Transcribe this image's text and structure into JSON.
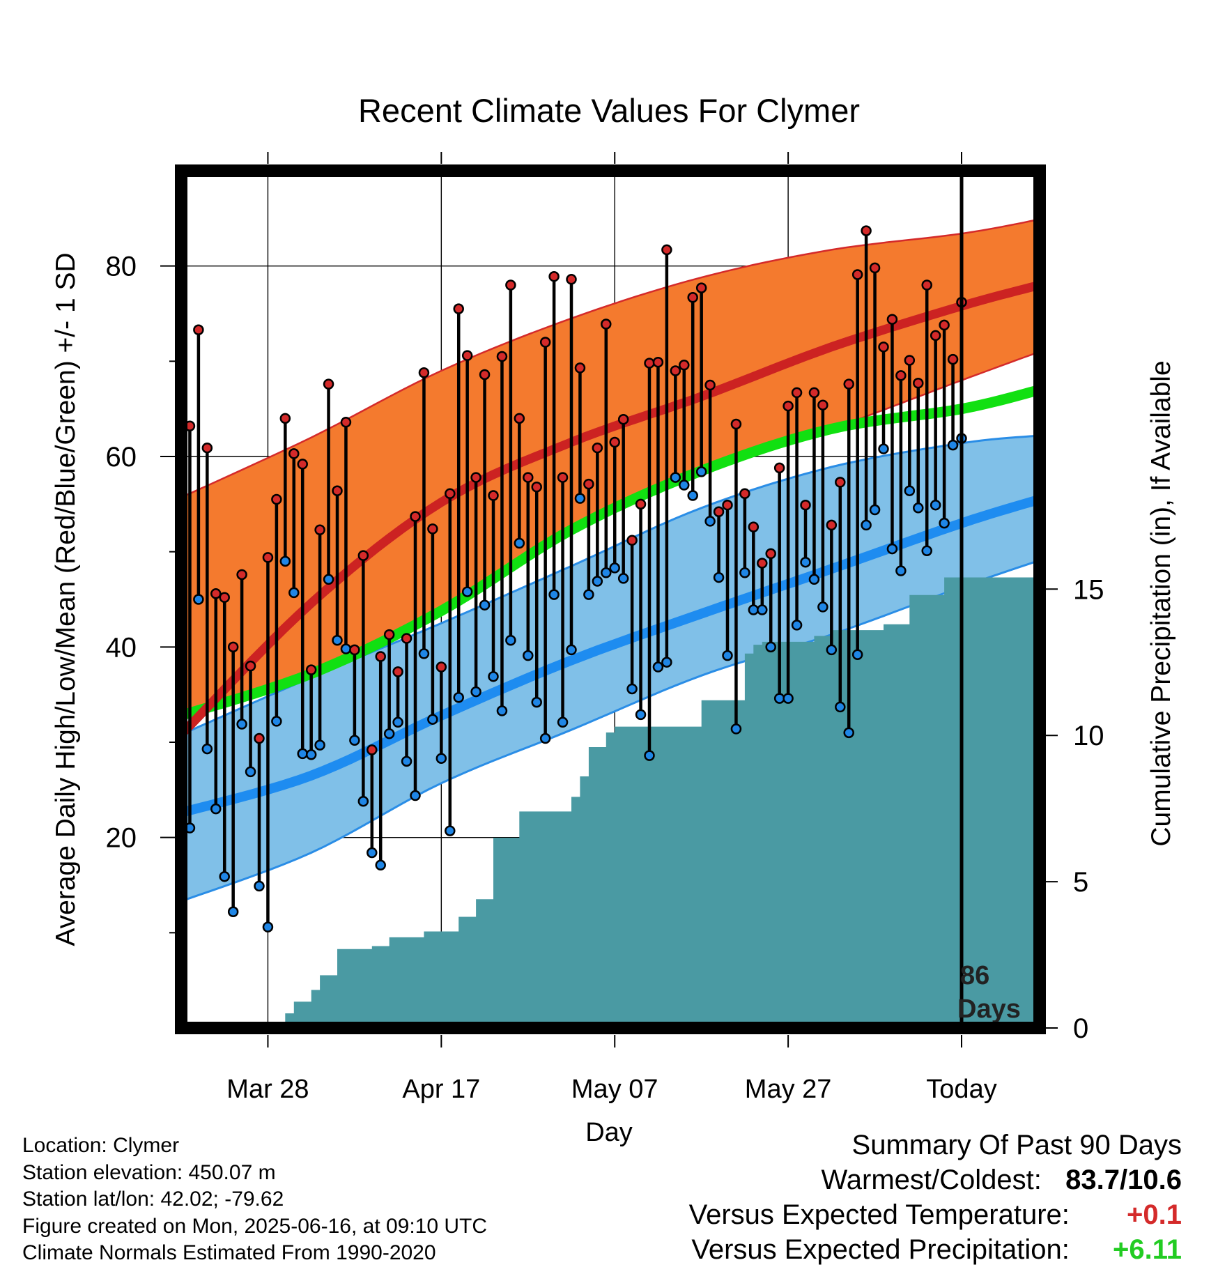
{
  "title": "Recent Climate Values For Clymer",
  "colors": {
    "high_band": "#f47a2e",
    "high_band_edge": "#d42a2a",
    "high_mean": "#cc2222",
    "low_band": "#80c0e8",
    "low_band_edge": "#2a8de6",
    "low_mean": "#1e8cf0",
    "mean_line": "#11e011",
    "precip_fill": "#4a9aa3",
    "high_dot": "#d42a2a",
    "low_dot": "#1f86e6",
    "positive_temp": "#d42a2a",
    "positive_precip": "#22cc22"
  },
  "chart_data": {
    "type": "line",
    "title": "Recent Climate Values For Clymer",
    "xlabel": "Day",
    "ylabel": "Average Daily High/Low/Mean (Red/Blue/Green) +/- 1 SD",
    "y2label": "Cumulative Precipitation (in), If Available",
    "ylim": [
      0,
      90
    ],
    "y2lim": [
      0,
      29.3
    ],
    "x_range": [
      "2025-03-18",
      "2025-06-25"
    ],
    "x_ticks": [
      {
        "date": "2025-03-28",
        "label": "Mar 28"
      },
      {
        "date": "2025-04-17",
        "label": "Apr 17"
      },
      {
        "date": "2025-05-07",
        "label": "May 07"
      },
      {
        "date": "2025-05-27",
        "label": "May 27"
      },
      {
        "date": "2025-06-16",
        "label": "Today"
      }
    ],
    "y_ticks": [
      20,
      40,
      60,
      80
    ],
    "y2_ticks": [
      0,
      5,
      10,
      15
    ],
    "today_marker": {
      "date": "2025-06-16",
      "label": "86 Days"
    },
    "grid": true,
    "normals": {
      "dates": [
        "2025-03-18",
        "2025-04-02",
        "2025-04-17",
        "2025-05-02",
        "2025-05-17",
        "2025-06-01",
        "2025-06-16",
        "2025-06-25"
      ],
      "high_mean": [
        30.8,
        44.6,
        55.2,
        61.5,
        66.3,
        71.5,
        75.8,
        78.0
      ],
      "high_upper": [
        55.7,
        62.0,
        69.0,
        74.5,
        78.8,
        81.7,
        83.4,
        84.9
      ],
      "high_lower": [
        32.8,
        37.2,
        43.8,
        52.3,
        58.5,
        62.9,
        68.0,
        71.0
      ],
      "low_mean": [
        22.6,
        26.5,
        32.8,
        38.6,
        43.5,
        48.2,
        53.0,
        55.5
      ],
      "low_upper": [
        30.8,
        36.8,
        42.5,
        48.5,
        54.6,
        58.9,
        61.4,
        62.2
      ],
      "low_lower": [
        13.3,
        18.4,
        25.7,
        31.3,
        37.0,
        41.3,
        46.3,
        49.1
      ],
      "mean": [
        32.8,
        37.2,
        43.8,
        52.3,
        58.5,
        62.9,
        65.0,
        67.0
      ]
    },
    "series": [
      {
        "name": "Daily High",
        "x_start": "2025-03-19",
        "values": [
          63.2,
          73.3,
          60.9,
          45.6,
          45.2,
          40.0,
          47.6,
          38.0,
          30.4,
          49.4,
          55.5,
          64.0,
          60.3,
          59.2,
          37.6,
          52.3,
          67.6,
          56.4,
          63.6,
          39.7,
          49.6,
          29.2,
          39.0,
          41.3,
          37.4,
          40.9,
          53.7,
          68.8,
          52.4,
          37.9,
          56.1,
          75.5,
          70.6,
          57.8,
          68.6,
          55.9,
          70.5,
          78.0,
          64.0,
          57.8,
          56.8,
          72.0,
          78.9,
          57.8,
          78.6,
          69.3,
          57.1,
          60.9,
          73.9,
          61.5,
          63.9,
          51.2,
          55.0,
          69.8,
          69.9,
          81.7,
          69.0,
          69.6,
          76.7,
          77.7,
          67.5,
          54.2,
          54.9,
          63.4,
          56.1,
          52.6,
          48.8,
          49.8,
          58.8,
          65.3,
          66.7,
          54.9,
          66.7,
          65.4,
          52.8,
          57.3,
          67.6,
          79.1,
          83.7,
          79.8,
          71.5,
          74.4,
          68.5,
          70.1,
          67.7,
          78.0,
          72.7,
          73.8,
          70.2,
          76.2
        ]
      },
      {
        "name": "Daily Low",
        "x_start": "2025-03-19",
        "values": [
          21.0,
          45.0,
          29.3,
          23.0,
          15.9,
          12.2,
          31.9,
          26.9,
          14.9,
          10.6,
          32.2,
          49.0,
          45.7,
          28.8,
          28.7,
          29.7,
          47.1,
          40.7,
          39.8,
          30.2,
          23.8,
          18.4,
          17.1,
          30.9,
          32.1,
          28.0,
          24.4,
          39.3,
          32.4,
          28.3,
          20.7,
          34.7,
          45.8,
          35.3,
          44.4,
          36.9,
          33.3,
          40.7,
          50.9,
          39.1,
          34.2,
          30.4,
          45.5,
          32.1,
          39.7,
          55.6,
          45.5,
          46.9,
          47.8,
          48.3,
          47.2,
          35.6,
          32.9,
          28.6,
          37.9,
          38.4,
          57.8,
          57.0,
          55.9,
          58.4,
          53.2,
          47.3,
          39.1,
          31.4,
          47.8,
          43.9,
          43.9,
          40.0,
          34.6,
          34.6,
          42.3,
          48.9,
          47.1,
          44.2,
          39.7,
          33.7,
          31.0,
          39.2,
          52.8,
          54.4,
          60.8,
          50.3,
          48.0,
          56.4,
          54.6,
          50.1,
          54.9,
          53.0,
          61.2,
          61.9
        ]
      }
    ],
    "precip_cumulative": {
      "x_start": "2025-03-19",
      "values": [
        0,
        0,
        0,
        0,
        0,
        0,
        0,
        0,
        0,
        0,
        0,
        0.5,
        0.9,
        0.9,
        1.3,
        1.8,
        1.8,
        2.7,
        2.7,
        2.7,
        2.7,
        2.8,
        2.8,
        3.1,
        3.1,
        3.1,
        3.1,
        3.3,
        3.3,
        3.3,
        3.3,
        3.8,
        3.8,
        4.4,
        4.4,
        6.5,
        6.5,
        6.5,
        7.4,
        7.4,
        7.4,
        7.4,
        7.4,
        7.4,
        7.9,
        8.6,
        9.6,
        9.6,
        10.1,
        10.3,
        10.3,
        10.3,
        10.3,
        10.3,
        10.3,
        10.3,
        10.3,
        10.3,
        10.3,
        11.2,
        11.2,
        11.2,
        11.2,
        11.2,
        12.8,
        13.1,
        13.2,
        13.2,
        13.2,
        13.2,
        13.2,
        13.2,
        13.4,
        13.4,
        13.6,
        13.6,
        13.6,
        13.6,
        13.6,
        13.6,
        13.8,
        13.8,
        13.8,
        14.8,
        14.8,
        14.8,
        14.8,
        15.4,
        15.4,
        15.4,
        15.4,
        15.4,
        15.4,
        15.4,
        15.4,
        15.4,
        15.4,
        15.4,
        15.4
      ]
    }
  },
  "axes": {
    "xlabel": "Day",
    "ylabel": "Average Daily High/Low/Mean (Red/Blue/Green) +/- 1 SD",
    "y2label": "Cumulative Precipitation (in), If Available",
    "x_tick_labels": [
      "Mar 28",
      "Apr 17",
      "May 07",
      "May 27",
      "Today"
    ],
    "y_tick_labels": [
      "20",
      "40",
      "60",
      "80"
    ],
    "y2_tick_labels": [
      "0",
      "5",
      "10",
      "15"
    ]
  },
  "today_label": {
    "line1": "86",
    "line2": "Days"
  },
  "footer_left": {
    "location": "Location: Clymer",
    "elevation": "Station elevation: 450.07 m",
    "latlon": "Station lat/lon: 42.02; -79.62",
    "created": "Figure created on Mon, 2025-06-16, at 09:10 UTC",
    "normals": "Climate Normals Estimated From 1990-2020"
  },
  "summary": {
    "heading": "Summary Of Past 90 Days",
    "warmest_coldest_label": "Warmest/Coldest:",
    "warmest_coldest_value": "83.7/10.6",
    "temp_label": "Versus Expected Temperature:",
    "temp_value": "+0.1",
    "precip_label": "Versus Expected Precipitation:",
    "precip_value": "+6.11"
  }
}
